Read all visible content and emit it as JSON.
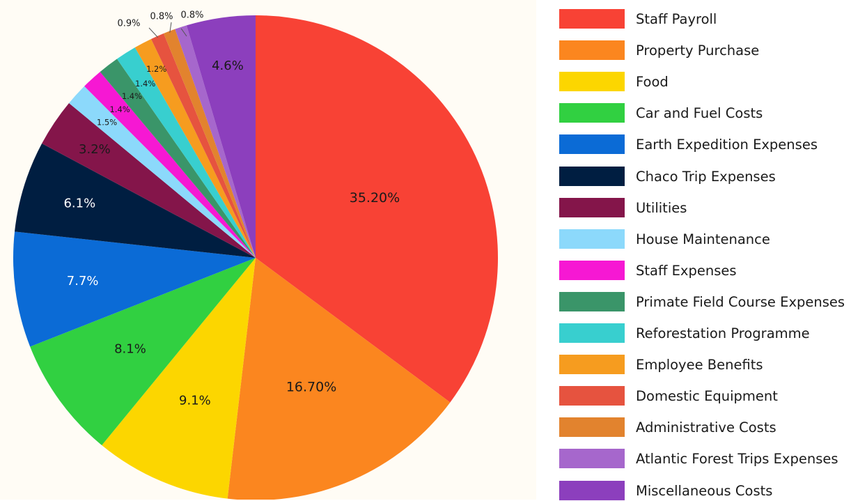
{
  "chart_data": {
    "type": "pie",
    "title": "",
    "legend_position": "right",
    "start_angle_deg": 0,
    "direction": "clockwise",
    "slices": [
      {
        "label": "Staff Payroll",
        "value": 35.2,
        "display": "35.20%",
        "color": "#f84235"
      },
      {
        "label": "Property Purchase",
        "value": 16.7,
        "display": "16.70%",
        "color": "#fb861f"
      },
      {
        "label": "Food",
        "value": 9.1,
        "display": "9.1%",
        "color": "#fcd600"
      },
      {
        "label": "Car and Fuel Costs",
        "value": 8.1,
        "display": "8.1%",
        "color": "#31d041"
      },
      {
        "label": "Earth Expedition Expenses",
        "value": 7.7,
        "display": "7.7%",
        "color": "#0b6bd6"
      },
      {
        "label": "Chaco Trip Expenses",
        "value": 6.1,
        "display": "6.1%",
        "color": "#001e41"
      },
      {
        "label": "Utilities",
        "value": 3.2,
        "display": "3.2%",
        "color": "#84154a"
      },
      {
        "label": "House Maintenance",
        "value": 1.5,
        "display": "1.5%",
        "color": "#8cd9fb"
      },
      {
        "label": "Staff Expenses",
        "value": 1.4,
        "display": "1.4%",
        "color": "#f618d3"
      },
      {
        "label": "Primate Field Course Expenses",
        "value": 1.4,
        "display": "1.4%",
        "color": "#3a9569"
      },
      {
        "label": "Reforestation Programme",
        "value": 1.4,
        "display": "1.4%",
        "color": "#38cfcf"
      },
      {
        "label": "Employee Benefits",
        "value": 1.2,
        "display": "1.2%",
        "color": "#f69c1f"
      },
      {
        "label": "Domestic Equipment",
        "value": 0.9,
        "display": "0.9%",
        "color": "#e6533f"
      },
      {
        "label": "Administrative Costs",
        "value": 0.8,
        "display": "0.8%",
        "color": "#e2832e"
      },
      {
        "label": "Atlantic Forest Trips Expenses",
        "value": 0.8,
        "display": "0.8%",
        "color": "#a667cc"
      },
      {
        "label": "Miscellaneous Costs",
        "value": 4.6,
        "display": "4.6%",
        "color": "#8c3fbd"
      }
    ]
  }
}
